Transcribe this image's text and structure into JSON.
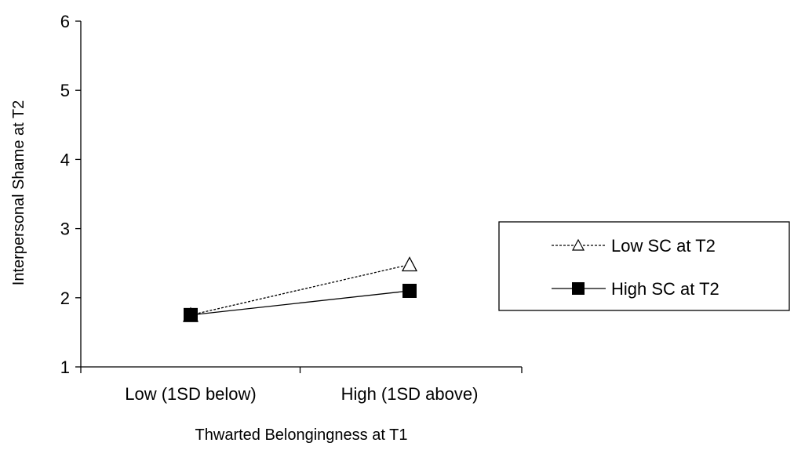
{
  "chart_data": {
    "type": "line",
    "title": "",
    "xlabel": "Thwarted Belongingness at T1",
    "ylabel": "Interpersonal Shame at T2",
    "categories": [
      "Low (1SD below)",
      "High (1SD above)"
    ],
    "ylim": [
      1,
      6
    ],
    "yticks": [
      "1",
      "2",
      "3",
      "4",
      "5",
      "6"
    ],
    "grid": false,
    "legend_position": "right",
    "series": [
      {
        "name": "Low SC at T2",
        "values": [
          1.75,
          2.48
        ],
        "line_style": "dashed",
        "marker": "open-triangle",
        "color": "#000000"
      },
      {
        "name": "High SC at T2",
        "values": [
          1.75,
          2.1
        ],
        "line_style": "solid",
        "marker": "filled-square",
        "color": "#000000"
      }
    ]
  }
}
